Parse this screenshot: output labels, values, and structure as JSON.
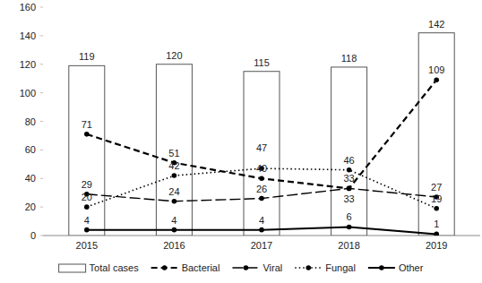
{
  "chart_data": {
    "type": "bar",
    "categories": [
      "2015",
      "2016",
      "2017",
      "2018",
      "2019"
    ],
    "series": [
      {
        "name": "Total cases",
        "type": "bar",
        "color": "#ffffff",
        "values": [
          119,
          120,
          115,
          118,
          142
        ]
      },
      {
        "name": "Bacterial",
        "type": "line",
        "color": "#000000",
        "line_style": "dashed",
        "marker": "circle",
        "values": [
          71,
          51,
          40,
          33,
          109
        ]
      },
      {
        "name": "Viral",
        "type": "line",
        "color": "#000000",
        "line_style": "longdash",
        "marker": "circle",
        "values": [
          29,
          24,
          26,
          33,
          27
        ]
      },
      {
        "name": "Fungal",
        "type": "line",
        "color": "#000000",
        "line_style": "dotted",
        "marker": "circle",
        "values": [
          20,
          42,
          47,
          46,
          19
        ]
      },
      {
        "name": "Other",
        "type": "line",
        "color": "#000000",
        "line_style": "solid",
        "marker": "circle",
        "values": [
          4,
          4,
          4,
          6,
          1
        ]
      }
    ],
    "ylim": [
      0,
      160
    ],
    "yticks": [
      0,
      20,
      40,
      60,
      80,
      100,
      120,
      140,
      160
    ],
    "grid": false,
    "legend": "bottom",
    "data_labels": true
  }
}
